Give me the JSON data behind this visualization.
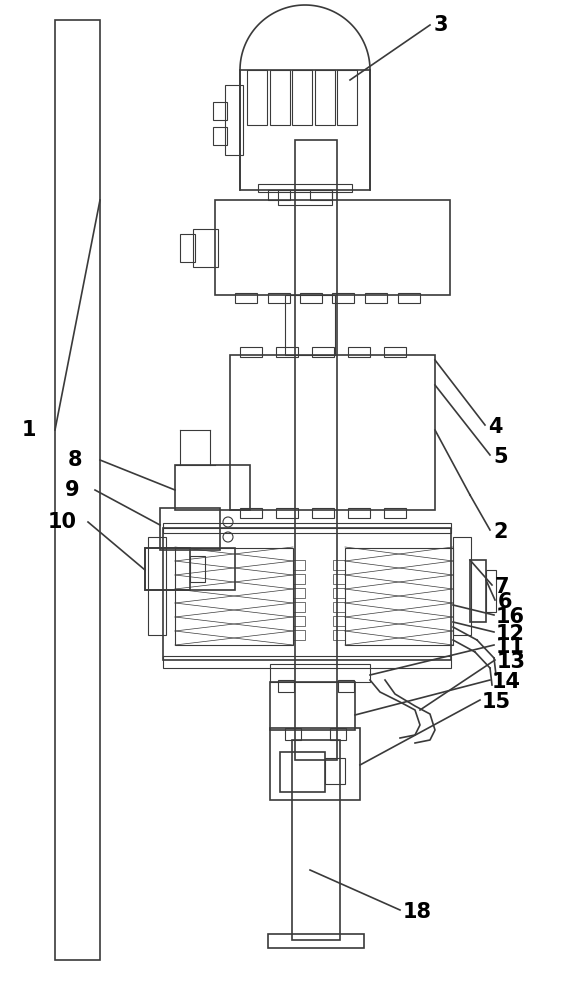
{
  "bg_color": "#ffffff",
  "line_color": "#3a3a3a",
  "label_color": "#000000",
  "label_fontsize": 13,
  "fig_width": 5.62,
  "fig_height": 10.0
}
